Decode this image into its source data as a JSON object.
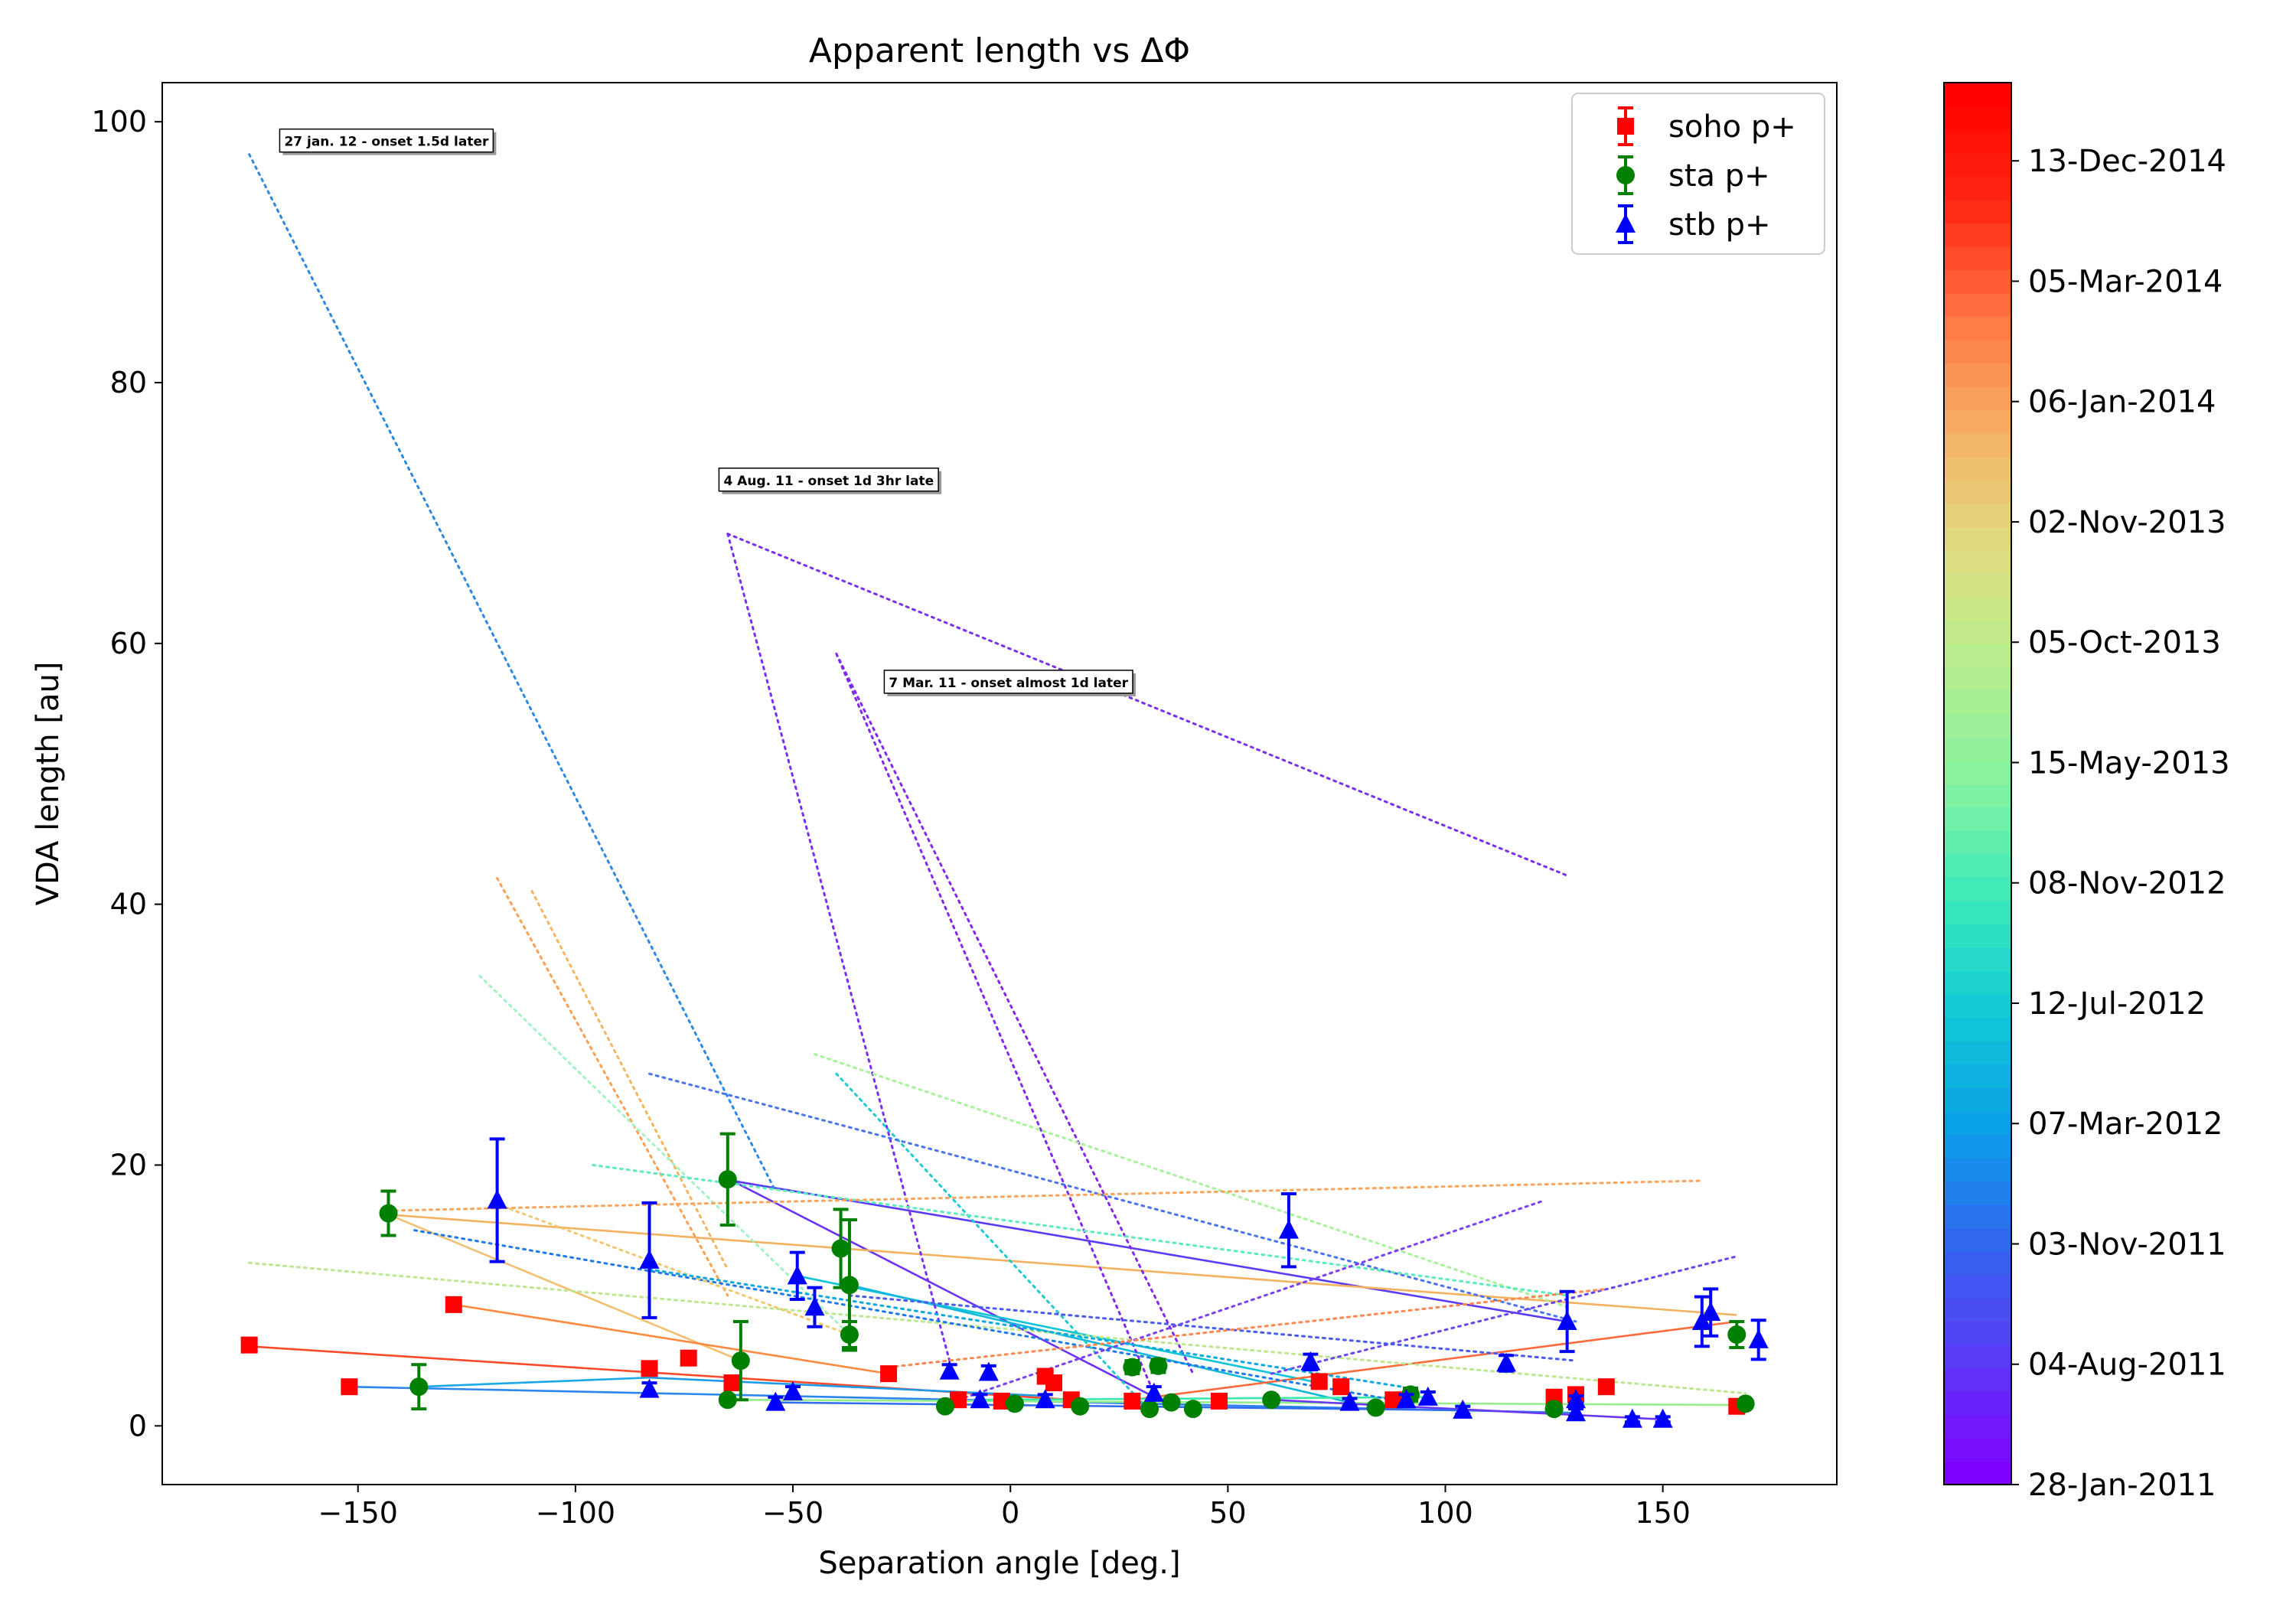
{
  "chart_data": {
    "type": "scatter",
    "title": "Apparent length vs ΔΦ",
    "xlabel": "Separation angle [deg.]",
    "ylabel": "VDA length [au]",
    "xlim": [
      -195,
      190
    ],
    "ylim": [
      -4.5,
      103
    ],
    "xticks": [
      -150,
      -100,
      -50,
      0,
      50,
      100,
      150
    ],
    "xtick_labels": [
      "−150",
      "−100",
      "−50",
      "0",
      "50",
      "100",
      "150"
    ],
    "yticks": [
      0,
      20,
      40,
      60,
      80,
      100
    ],
    "ytick_labels": [
      "0",
      "20",
      "40",
      "60",
      "80",
      "100"
    ],
    "legend_position": "top-right",
    "series": [
      {
        "name": "soho p+",
        "marker": "square",
        "color": "#ff0000",
        "points": [
          [
            -175,
            6.2
          ],
          [
            -152,
            3.0
          ],
          [
            -128,
            9.3
          ],
          [
            -83,
            4.4
          ],
          [
            -74,
            5.2
          ],
          [
            -64,
            3.3
          ],
          [
            -28,
            4.0
          ],
          [
            -12,
            2.0
          ],
          [
            -2,
            1.9
          ],
          [
            8,
            3.8
          ],
          [
            10,
            3.3
          ],
          [
            14,
            2.0
          ],
          [
            28,
            1.9
          ],
          [
            48,
            1.9
          ],
          [
            71,
            3.4
          ],
          [
            76,
            3.0
          ],
          [
            88,
            2.0
          ],
          [
            125,
            2.2
          ],
          [
            130,
            2.4
          ],
          [
            137,
            3.0
          ],
          [
            167,
            1.5
          ]
        ],
        "errors": []
      },
      {
        "name": "sta p+",
        "marker": "circle",
        "color": "#008000",
        "points": [
          [
            -143,
            16.3
          ],
          [
            -136,
            3.0
          ],
          [
            -65,
            2.0
          ],
          [
            -65,
            18.9
          ],
          [
            -62,
            5.0
          ],
          [
            -39,
            13.6
          ],
          [
            -37,
            10.8
          ],
          [
            -37,
            7.0
          ],
          [
            -15,
            1.5
          ],
          [
            1,
            1.7
          ],
          [
            16,
            1.5
          ],
          [
            28,
            4.5
          ],
          [
            32,
            1.3
          ],
          [
            34,
            4.6
          ],
          [
            37,
            1.8
          ],
          [
            42,
            1.3
          ],
          [
            60,
            2.0
          ],
          [
            84,
            1.4
          ],
          [
            92,
            2.4
          ],
          [
            125,
            1.3
          ],
          [
            167,
            7.0
          ],
          [
            169,
            1.7
          ]
        ],
        "errors": [
          1.7,
          1.7,
          0.3,
          3.5,
          3.0,
          3.0,
          5.0,
          1.0,
          0.2,
          0.2,
          0.2,
          0.5,
          0.2,
          0.5,
          0.2,
          0.2,
          0.3,
          0.3,
          0.5,
          0.2,
          1.0,
          0.3
        ]
      },
      {
        "name": "stb p+",
        "marker": "triangle",
        "color": "#0000ff",
        "points": [
          [
            -118,
            17.3
          ],
          [
            -83,
            12.7
          ],
          [
            -83,
            2.8
          ],
          [
            -54,
            1.8
          ],
          [
            -50,
            2.6
          ],
          [
            -49,
            11.5
          ],
          [
            -45,
            9.1
          ],
          [
            -14,
            4.2
          ],
          [
            -7,
            2.0
          ],
          [
            -5,
            4.1
          ],
          [
            8,
            2.0
          ],
          [
            33,
            2.5
          ],
          [
            64,
            15.0
          ],
          [
            69,
            4.9
          ],
          [
            78,
            1.8
          ],
          [
            91,
            2.0
          ],
          [
            96,
            2.2
          ],
          [
            104,
            1.2
          ],
          [
            114,
            4.8
          ],
          [
            128,
            8.0
          ],
          [
            130,
            2.0
          ],
          [
            130,
            1.0
          ],
          [
            143,
            0.5
          ],
          [
            150,
            0.5
          ],
          [
            159,
            8.0
          ],
          [
            161,
            8.7
          ],
          [
            172,
            6.6
          ]
        ],
        "errors": [
          4.7,
          4.4,
          0.5,
          0.4,
          0.4,
          1.8,
          1.5,
          0.5,
          0.4,
          0.5,
          0.4,
          0.5,
          2.8,
          0.6,
          0.3,
          0.4,
          0.4,
          0.3,
          0.6,
          2.3,
          0.3,
          0.3,
          0.2,
          0.2,
          1.9,
          1.8,
          1.5
        ]
      }
    ],
    "connections": [
      {
        "from": [
          -64,
          18.8
        ],
        "to": [
          128,
          8.0
        ],
        "color": "#5a3af6",
        "style": "solid"
      },
      {
        "from": [
          -64,
          18.8
        ],
        "to": [
          32,
          2.4
        ],
        "color": "#6b34f4",
        "style": "solid"
      },
      {
        "from": [
          -143,
          16.2
        ],
        "to": [
          167,
          8.5
        ],
        "color": "#f2b260",
        "style": "solid"
      },
      {
        "from": [
          -143,
          16.2
        ],
        "to": [
          -62,
          5.0
        ],
        "color": "#f2c070",
        "style": "solid"
      },
      {
        "from": [
          -128,
          9.3
        ],
        "to": [
          -28,
          4.0
        ],
        "color": "#ff8a40",
        "style": "solid"
      },
      {
        "from": [
          -175,
          6.1
        ],
        "to": [
          14,
          2.0
        ],
        "color": "#ff4a2a",
        "style": "solid"
      },
      {
        "from": [
          -152,
          3.0
        ],
        "to": [
          130,
          1.0
        ],
        "color": "#2d86ee",
        "style": "solid"
      },
      {
        "from": [
          -136,
          3.0
        ],
        "to": [
          -83,
          3.7
        ],
        "color": "#1aa8e6",
        "style": "solid"
      },
      {
        "from": [
          -83,
          3.7
        ],
        "to": [
          8,
          2.3
        ],
        "color": "#1c9ae8",
        "style": "solid"
      },
      {
        "from": [
          -49,
          11.5
        ],
        "to": [
          71,
          3.3
        ],
        "color": "#10c4d8",
        "style": "solid"
      },
      {
        "from": [
          -37,
          10.8
        ],
        "to": [
          78,
          1.8
        ],
        "color": "#12b8dc",
        "style": "solid"
      },
      {
        "from": [
          28,
          2.0
        ],
        "to": [
          167,
          8.0
        ],
        "color": "#ff6a3a",
        "style": "solid"
      },
      {
        "from": [
          -65,
          2.0
        ],
        "to": [
          169,
          1.6
        ],
        "color": "#94ee8c",
        "style": "solid"
      },
      {
        "from": [
          60,
          2.0
        ],
        "to": [
          150,
          0.5
        ],
        "color": "#6a36f4",
        "style": "solid"
      },
      {
        "from": [
          -54,
          1.8
        ],
        "to": [
          104,
          1.2
        ],
        "color": "#2f6cf0",
        "style": "solid"
      },
      {
        "from": [
          -7,
          2.0
        ],
        "to": [
          96,
          2.2
        ],
        "color": "#3aeaa8",
        "style": "solid"
      },
      {
        "from": [
          -175,
          97.5
        ],
        "to": [
          -54,
          18.0
        ],
        "color": "#2a88e6",
        "style": "dotted"
      },
      {
        "from": [
          -65,
          68.4
        ],
        "to": [
          128,
          42.2
        ],
        "color": "#7a2ef2",
        "style": "dotted"
      },
      {
        "from": [
          -65,
          68.4
        ],
        "to": [
          -14,
          5.0
        ],
        "color": "#7a2ef2",
        "style": "dotted"
      },
      {
        "from": [
          -40,
          59.2
        ],
        "to": [
          42,
          4.0
        ],
        "color": "#8028f0",
        "style": "dotted"
      },
      {
        "from": [
          -40,
          59.2
        ],
        "to": [
          33,
          2.5
        ],
        "color": "#8028f0",
        "style": "dotted"
      },
      {
        "from": [
          -118,
          42.0
        ],
        "to": [
          -65,
          10.0
        ],
        "color": "#ffa050",
        "style": "dotted"
      },
      {
        "from": [
          -110,
          41.0
        ],
        "to": [
          -65,
          12.0
        ],
        "color": "#f7b45e",
        "style": "dotted"
      },
      {
        "from": [
          -122,
          34.5
        ],
        "to": [
          -37,
          7.0
        ],
        "color": "#a2f2c4",
        "style": "dotted"
      },
      {
        "from": [
          -45,
          28.5
        ],
        "to": [
          129,
          9.0
        ],
        "color": "#a8f29a",
        "style": "dotted"
      },
      {
        "from": [
          -40,
          27.0
        ],
        "to": [
          31,
          1.5
        ],
        "color": "#1ccad0",
        "style": "dotted"
      },
      {
        "from": [
          -83,
          27.0
        ],
        "to": [
          130,
          8.0
        ],
        "color": "#4a74ee",
        "style": "dotted"
      },
      {
        "from": [
          -96,
          20.0
        ],
        "to": [
          128,
          10.0
        ],
        "color": "#5cecbc",
        "style": "dotted"
      },
      {
        "from": [
          -143,
          16.5
        ],
        "to": [
          159,
          18.8
        ],
        "color": "#fba45c",
        "style": "dotted"
      },
      {
        "from": [
          -175,
          12.5
        ],
        "to": [
          169,
          2.5
        ],
        "color": "#bce890",
        "style": "dotted"
      },
      {
        "from": [
          -137,
          15.0
        ],
        "to": [
          88,
          2.0
        ],
        "color": "#1e7aea",
        "style": "dotted"
      },
      {
        "from": [
          -118,
          17.0
        ],
        "to": [
          -37,
          7.0
        ],
        "color": "#f0c870",
        "style": "dotted"
      },
      {
        "from": [
          -12,
          2.0
        ],
        "to": [
          122,
          17.2
        ],
        "color": "#7a40f2",
        "style": "dotted"
      },
      {
        "from": [
          60,
          4.0
        ],
        "to": [
          167,
          13.0
        ],
        "color": "#6a44f2",
        "style": "dotted"
      },
      {
        "from": [
          -37,
          10.0
        ],
        "to": [
          130,
          5.0
        ],
        "color": "#4a5cf0",
        "style": "dotted"
      },
      {
        "from": [
          -83,
          12.0
        ],
        "to": [
          90,
          3.0
        ],
        "color": "#0aa8e0",
        "style": "dotted"
      },
      {
        "from": [
          -28,
          4.5
        ],
        "to": [
          137,
          10.5
        ],
        "color": "#ff8850",
        "style": "dotted"
      }
    ],
    "annotations": [
      {
        "text": "27 jan. 12 - onset 1.5d later",
        "x": -168,
        "y": 98.5,
        "arrow_to": [
          -175,
          97.5
        ]
      },
      {
        "text": "4 Aug. 11 - onset 1d 3hr late",
        "x": -67,
        "y": 72.5,
        "arrow_to": [
          -65,
          68.4
        ]
      },
      {
        "text": "7 Mar. 11 - onset almost 1d later",
        "x": -29,
        "y": 57.0,
        "arrow_to": [
          -40,
          59.2
        ]
      }
    ],
    "colorbar": {
      "labels": [
        "28-Jan-2011",
        "04-Aug-2011",
        "03-Nov-2011",
        "07-Mar-2012",
        "12-Jul-2012",
        "08-Nov-2012",
        "15-May-2013",
        "05-Oct-2013",
        "02-Nov-2013",
        "06-Jan-2014",
        "05-Mar-2014",
        "13-Dec-2014"
      ],
      "colors": [
        "#8000ff",
        "#5a3af6",
        "#3266f0",
        "#0aa0e8",
        "#12c8d6",
        "#3aeaba",
        "#86f2a0",
        "#b4ee8e",
        "#dede80",
        "#f4b466",
        "#ff7a46",
        "#ff2a14",
        "#ff0000"
      ]
    }
  }
}
